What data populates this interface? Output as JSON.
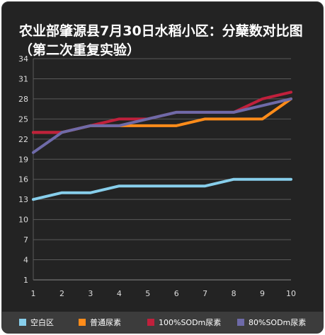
{
  "chart_data": {
    "type": "line",
    "title": "农业部肇源县7月30日水稻小区：分蘖数对比图（第二次重复实验）",
    "x": [
      1,
      2,
      3,
      4,
      5,
      6,
      7,
      8,
      9,
      10
    ],
    "y_ticks": [
      1,
      4,
      7,
      10,
      13,
      16,
      19,
      22,
      25,
      28,
      31,
      34
    ],
    "ylim": [
      1,
      34
    ],
    "xlim": [
      1,
      10
    ],
    "grid": true,
    "legend_position": "bottom",
    "series": [
      {
        "name": "空白区",
        "color": "#87ceeb",
        "values": [
          13,
          14,
          14,
          15,
          15,
          15,
          15,
          16,
          16,
          16
        ]
      },
      {
        "name": "普通尿素",
        "color": "#ff8c1a",
        "values": [
          23,
          23,
          24,
          24,
          24,
          24,
          25,
          25,
          25,
          28
        ]
      },
      {
        "name": "100%SODm尿素",
        "color": "#c0203c",
        "values": [
          23,
          23,
          24,
          25,
          25,
          26,
          26,
          26,
          28,
          29
        ]
      },
      {
        "name": "80%SODm尿素",
        "color": "#6e6aa8",
        "values": [
          20,
          23,
          24,
          24,
          25,
          26,
          26,
          26,
          27,
          28
        ]
      }
    ]
  }
}
